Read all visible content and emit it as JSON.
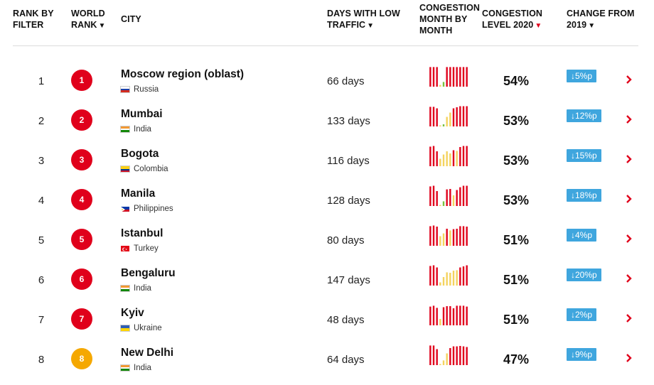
{
  "header": {
    "rank_by_filter": [
      "RANK BY",
      "FILTER"
    ],
    "world_rank": [
      "WORLD",
      "RANK"
    ],
    "city": "CITY",
    "days_low_traffic": [
      "DAYS WITH LOW",
      "TRAFFIC"
    ],
    "congestion_month": [
      "CONGESTION",
      "MONTH BY",
      "MONTH"
    ],
    "congestion_level": [
      "CONGESTION",
      "LEVEL 2020"
    ],
    "change_from": [
      "CHANGE FROM",
      "2019"
    ],
    "sort_arrow": "▼"
  },
  "colors": {
    "accent_red": "#e0001b",
    "amber": "#f5a800",
    "low_yellow": "#f4d35e",
    "low_green": "#7ac142",
    "change_blue": "#3fa6de"
  },
  "rows": [
    {
      "rank": "1",
      "world_rank": "1",
      "badge": "red",
      "city": "Moscow region (oblast)",
      "country": "Russia",
      "flag": "russia",
      "days": "66 days",
      "level": "54%",
      "change": "↓5%p",
      "monthly": [
        {
          "v": 0.92,
          "c": "r"
        },
        {
          "v": 0.92,
          "c": "r"
        },
        {
          "v": 0.92,
          "c": "r"
        },
        {
          "v": 0.08,
          "c": "y"
        },
        {
          "v": 0.22,
          "c": "g"
        },
        {
          "v": 0.92,
          "c": "r"
        },
        {
          "v": 0.92,
          "c": "r"
        },
        {
          "v": 0.92,
          "c": "r"
        },
        {
          "v": 0.92,
          "c": "r"
        },
        {
          "v": 0.92,
          "c": "r"
        },
        {
          "v": 0.92,
          "c": "r"
        },
        {
          "v": 0.92,
          "c": "r"
        }
      ]
    },
    {
      "rank": "2",
      "world_rank": "2",
      "badge": "red",
      "city": "Mumbai",
      "country": "India",
      "flag": "india",
      "days": "133 days",
      "level": "53%",
      "change": "↓12%p",
      "monthly": [
        {
          "v": 0.92,
          "c": "r"
        },
        {
          "v": 0.92,
          "c": "r"
        },
        {
          "v": 0.85,
          "c": "r"
        },
        {
          "v": 0.05,
          "c": "y"
        },
        {
          "v": 0.1,
          "c": "g"
        },
        {
          "v": 0.45,
          "c": "y"
        },
        {
          "v": 0.65,
          "c": "y"
        },
        {
          "v": 0.85,
          "c": "r"
        },
        {
          "v": 0.9,
          "c": "r"
        },
        {
          "v": 0.95,
          "c": "r"
        },
        {
          "v": 0.95,
          "c": "r"
        },
        {
          "v": 0.95,
          "c": "r"
        }
      ]
    },
    {
      "rank": "3",
      "world_rank": "3",
      "badge": "red",
      "city": "Bogota",
      "country": "Colombia",
      "flag": "colombia",
      "days": "116 days",
      "level": "53%",
      "change": "↓15%p",
      "monthly": [
        {
          "v": 0.92,
          "c": "r"
        },
        {
          "v": 0.95,
          "c": "r"
        },
        {
          "v": 0.7,
          "c": "r"
        },
        {
          "v": 0.35,
          "c": "y"
        },
        {
          "v": 0.55,
          "c": "y"
        },
        {
          "v": 0.7,
          "c": "y"
        },
        {
          "v": 0.6,
          "c": "y"
        },
        {
          "v": 0.75,
          "c": "r"
        },
        {
          "v": 0.72,
          "c": "y"
        },
        {
          "v": 0.9,
          "c": "r"
        },
        {
          "v": 0.95,
          "c": "r"
        },
        {
          "v": 0.95,
          "c": "r"
        }
      ]
    },
    {
      "rank": "4",
      "world_rank": "4",
      "badge": "red",
      "city": "Manila",
      "country": "Philippines",
      "flag": "philippines",
      "days": "128 days",
      "level": "53%",
      "change": "↓18%p",
      "monthly": [
        {
          "v": 0.92,
          "c": "r"
        },
        {
          "v": 0.95,
          "c": "r"
        },
        {
          "v": 0.7,
          "c": "r"
        },
        {
          "v": 0.05,
          "c": "y"
        },
        {
          "v": 0.22,
          "c": "g"
        },
        {
          "v": 0.78,
          "c": "r"
        },
        {
          "v": 0.8,
          "c": "r"
        },
        {
          "v": 0.5,
          "c": "y"
        },
        {
          "v": 0.75,
          "c": "r"
        },
        {
          "v": 0.88,
          "c": "r"
        },
        {
          "v": 0.95,
          "c": "r"
        },
        {
          "v": 0.95,
          "c": "r"
        }
      ]
    },
    {
      "rank": "5",
      "world_rank": "5",
      "badge": "red",
      "city": "Istanbul",
      "country": "Turkey",
      "flag": "turkey",
      "days": "80 days",
      "level": "51%",
      "change": "↓4%p",
      "monthly": [
        {
          "v": 0.92,
          "c": "r"
        },
        {
          "v": 0.95,
          "c": "r"
        },
        {
          "v": 0.9,
          "c": "r"
        },
        {
          "v": 0.45,
          "c": "y"
        },
        {
          "v": 0.58,
          "c": "y"
        },
        {
          "v": 0.8,
          "c": "r"
        },
        {
          "v": 0.72,
          "c": "y"
        },
        {
          "v": 0.78,
          "c": "r"
        },
        {
          "v": 0.8,
          "c": "r"
        },
        {
          "v": 0.92,
          "c": "r"
        },
        {
          "v": 0.92,
          "c": "r"
        },
        {
          "v": 0.9,
          "c": "r"
        }
      ]
    },
    {
      "rank": "6",
      "world_rank": "6",
      "badge": "red",
      "city": "Bengaluru",
      "country": "India",
      "flag": "india",
      "days": "147 days",
      "level": "51%",
      "change": "↓20%p",
      "monthly": [
        {
          "v": 0.92,
          "c": "r"
        },
        {
          "v": 0.95,
          "c": "r"
        },
        {
          "v": 0.85,
          "c": "r"
        },
        {
          "v": 0.15,
          "c": "y"
        },
        {
          "v": 0.4,
          "c": "y"
        },
        {
          "v": 0.62,
          "c": "y"
        },
        {
          "v": 0.6,
          "c": "y"
        },
        {
          "v": 0.7,
          "c": "y"
        },
        {
          "v": 0.72,
          "c": "y"
        },
        {
          "v": 0.85,
          "c": "r"
        },
        {
          "v": 0.9,
          "c": "r"
        },
        {
          "v": 0.95,
          "c": "r"
        }
      ]
    },
    {
      "rank": "7",
      "world_rank": "7",
      "badge": "red",
      "city": "Kyiv",
      "country": "Ukraine",
      "flag": "ukraine",
      "days": "48 days",
      "level": "51%",
      "change": "↓2%p",
      "monthly": [
        {
          "v": 0.88,
          "c": "r"
        },
        {
          "v": 0.92,
          "c": "r"
        },
        {
          "v": 0.82,
          "c": "r"
        },
        {
          "v": 0.3,
          "c": "y"
        },
        {
          "v": 0.85,
          "c": "r"
        },
        {
          "v": 0.9,
          "c": "r"
        },
        {
          "v": 0.9,
          "c": "r"
        },
        {
          "v": 0.8,
          "c": "r"
        },
        {
          "v": 0.92,
          "c": "r"
        },
        {
          "v": 0.92,
          "c": "r"
        },
        {
          "v": 0.92,
          "c": "r"
        },
        {
          "v": 0.88,
          "c": "r"
        }
      ]
    },
    {
      "rank": "8",
      "world_rank": "8",
      "badge": "amber",
      "city": "New Delhi",
      "country": "India",
      "flag": "india",
      "days": "64 days",
      "level": "47%",
      "change": "↓9%p",
      "monthly": [
        {
          "v": 0.92,
          "c": "r"
        },
        {
          "v": 0.92,
          "c": "r"
        },
        {
          "v": 0.75,
          "c": "r"
        },
        {
          "v": 0.05,
          "c": "y"
        },
        {
          "v": 0.22,
          "c": "y"
        },
        {
          "v": 0.55,
          "c": "y"
        },
        {
          "v": 0.8,
          "c": "r"
        },
        {
          "v": 0.88,
          "c": "r"
        },
        {
          "v": 0.88,
          "c": "r"
        },
        {
          "v": 0.9,
          "c": "r"
        },
        {
          "v": 0.88,
          "c": "r"
        },
        {
          "v": 0.85,
          "c": "r"
        }
      ]
    }
  ]
}
